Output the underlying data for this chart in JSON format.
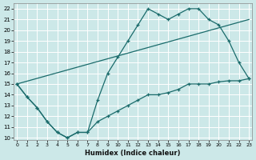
{
  "xlabel": "Humidex (Indice chaleur)",
  "bg_color": "#cce8e8",
  "line_color": "#1a6b6b",
  "grid_color": "#ffffff",
  "xlim_min": -0.3,
  "xlim_max": 23.3,
  "ylim_min": 9.8,
  "ylim_max": 22.5,
  "s1x": [
    0,
    1,
    2,
    3,
    4,
    5,
    6,
    7,
    8,
    9,
    10,
    11,
    12,
    13,
    14,
    15,
    16,
    17,
    18,
    19,
    20,
    21,
    22,
    23
  ],
  "s1y": [
    15,
    13.8,
    12.8,
    11.5,
    10.5,
    10.0,
    10.5,
    10.5,
    13.5,
    16.0,
    17.5,
    19.0,
    20.5,
    22.0,
    21.5,
    21.0,
    21.5,
    22.0,
    22.0,
    21.0,
    20.5,
    19.0,
    17.0,
    15.5
  ],
  "s2x": [
    0,
    23
  ],
  "s2y": [
    15,
    21.0
  ],
  "s3x": [
    0,
    1,
    2,
    3,
    4,
    5,
    6,
    7,
    8,
    9,
    10,
    11,
    12,
    13,
    14,
    15,
    16,
    17,
    18,
    19,
    20,
    21,
    22,
    23
  ],
  "s3y": [
    15,
    13.8,
    12.8,
    11.5,
    10.5,
    10.0,
    10.5,
    10.5,
    11.5,
    12.0,
    12.5,
    13.0,
    13.5,
    14.0,
    14.0,
    14.2,
    14.5,
    15.0,
    15.0,
    15.0,
    15.2,
    15.3,
    15.3,
    15.5
  ]
}
